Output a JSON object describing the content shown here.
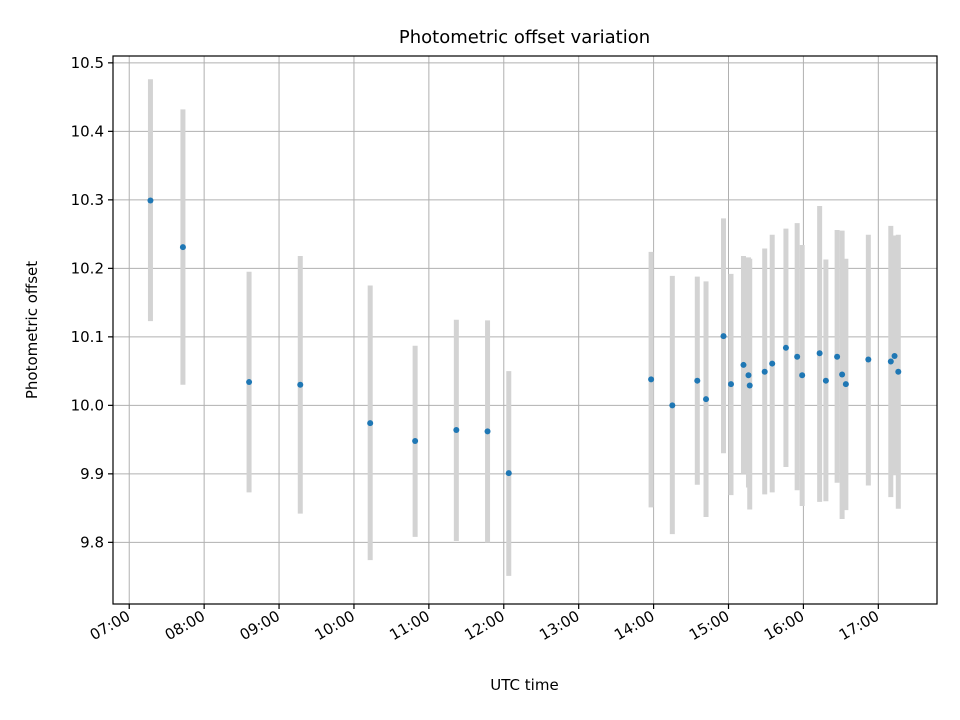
{
  "chart_data": {
    "type": "scatter",
    "title": "Photometric offset variation",
    "xlabel": "UTC time",
    "ylabel": "Photometric offset",
    "xlim": [
      "06:47",
      "17:47"
    ],
    "ylim": [
      9.71,
      10.51
    ],
    "grid": true,
    "xticks": [
      "07:00",
      "08:00",
      "09:00",
      "10:00",
      "11:00",
      "12:00",
      "13:00",
      "14:00",
      "15:00",
      "16:00",
      "17:00"
    ],
    "yticks": [
      9.8,
      9.9,
      10.0,
      10.1,
      10.2,
      10.3,
      10.4,
      10.5
    ],
    "ytick_labels": [
      "9.8",
      "9.9",
      "10.0",
      "10.1",
      "10.2",
      "10.3",
      "10.4",
      "10.5"
    ],
    "colors": {
      "point": "#1f77b4",
      "errorbar": "#d3d3d3",
      "grid": "#b0b0b0"
    },
    "points": [
      {
        "x": "07:17",
        "y": 10.299,
        "low": 10.123,
        "high": 10.476
      },
      {
        "x": "07:43",
        "y": 10.231,
        "low": 10.03,
        "high": 10.432
      },
      {
        "x": "08:36",
        "y": 10.034,
        "low": 9.873,
        "high": 10.195
      },
      {
        "x": "09:17",
        "y": 10.03,
        "low": 9.842,
        "high": 10.218
      },
      {
        "x": "10:13",
        "y": 9.974,
        "low": 9.774,
        "high": 10.175
      },
      {
        "x": "10:49",
        "y": 9.948,
        "low": 9.808,
        "high": 10.087
      },
      {
        "x": "11:22",
        "y": 9.964,
        "low": 9.802,
        "high": 10.125
      },
      {
        "x": "11:47",
        "y": 9.962,
        "low": 9.8,
        "high": 10.124
      },
      {
        "x": "12:04",
        "y": 9.901,
        "low": 9.751,
        "high": 10.05
      },
      {
        "x": "13:58",
        "y": 10.038,
        "low": 9.851,
        "high": 10.224
      },
      {
        "x": "14:15",
        "y": 10.0,
        "low": 9.812,
        "high": 10.189
      },
      {
        "x": "14:35",
        "y": 10.036,
        "low": 9.884,
        "high": 10.188
      },
      {
        "x": "14:42",
        "y": 10.009,
        "low": 9.837,
        "high": 10.181
      },
      {
        "x": "14:56",
        "y": 10.101,
        "low": 9.93,
        "high": 10.273
      },
      {
        "x": "15:02",
        "y": 10.031,
        "low": 9.869,
        "high": 10.192
      },
      {
        "x": "15:12",
        "y": 10.059,
        "low": 9.9,
        "high": 10.218
      },
      {
        "x": "15:16",
        "y": 10.044,
        "low": 9.88,
        "high": 10.216
      },
      {
        "x": "15:17",
        "y": 10.029,
        "low": 9.848,
        "high": 10.214
      },
      {
        "x": "15:29",
        "y": 10.049,
        "low": 9.87,
        "high": 10.229
      },
      {
        "x": "15:35",
        "y": 10.061,
        "low": 9.873,
        "high": 10.249
      },
      {
        "x": "15:46",
        "y": 10.084,
        "low": 9.91,
        "high": 10.258
      },
      {
        "x": "15:55",
        "y": 10.071,
        "low": 9.876,
        "high": 10.266
      },
      {
        "x": "15:59",
        "y": 10.044,
        "low": 9.853,
        "high": 10.234
      },
      {
        "x": "16:13",
        "y": 10.076,
        "low": 9.859,
        "high": 10.291
      },
      {
        "x": "16:18",
        "y": 10.036,
        "low": 9.86,
        "high": 10.213
      },
      {
        "x": "16:27",
        "y": 10.071,
        "low": 9.887,
        "high": 10.256
      },
      {
        "x": "16:31",
        "y": 10.045,
        "low": 9.834,
        "high": 10.255
      },
      {
        "x": "16:34",
        "y": 10.031,
        "low": 9.847,
        "high": 10.214
      },
      {
        "x": "16:52",
        "y": 10.067,
        "low": 9.883,
        "high": 10.249
      },
      {
        "x": "17:10",
        "y": 10.064,
        "low": 9.866,
        "high": 10.262
      },
      {
        "x": "17:13",
        "y": 10.072,
        "low": 9.898,
        "high": 10.248
      },
      {
        "x": "17:16",
        "y": 10.049,
        "low": 9.849,
        "high": 10.249
      }
    ]
  }
}
